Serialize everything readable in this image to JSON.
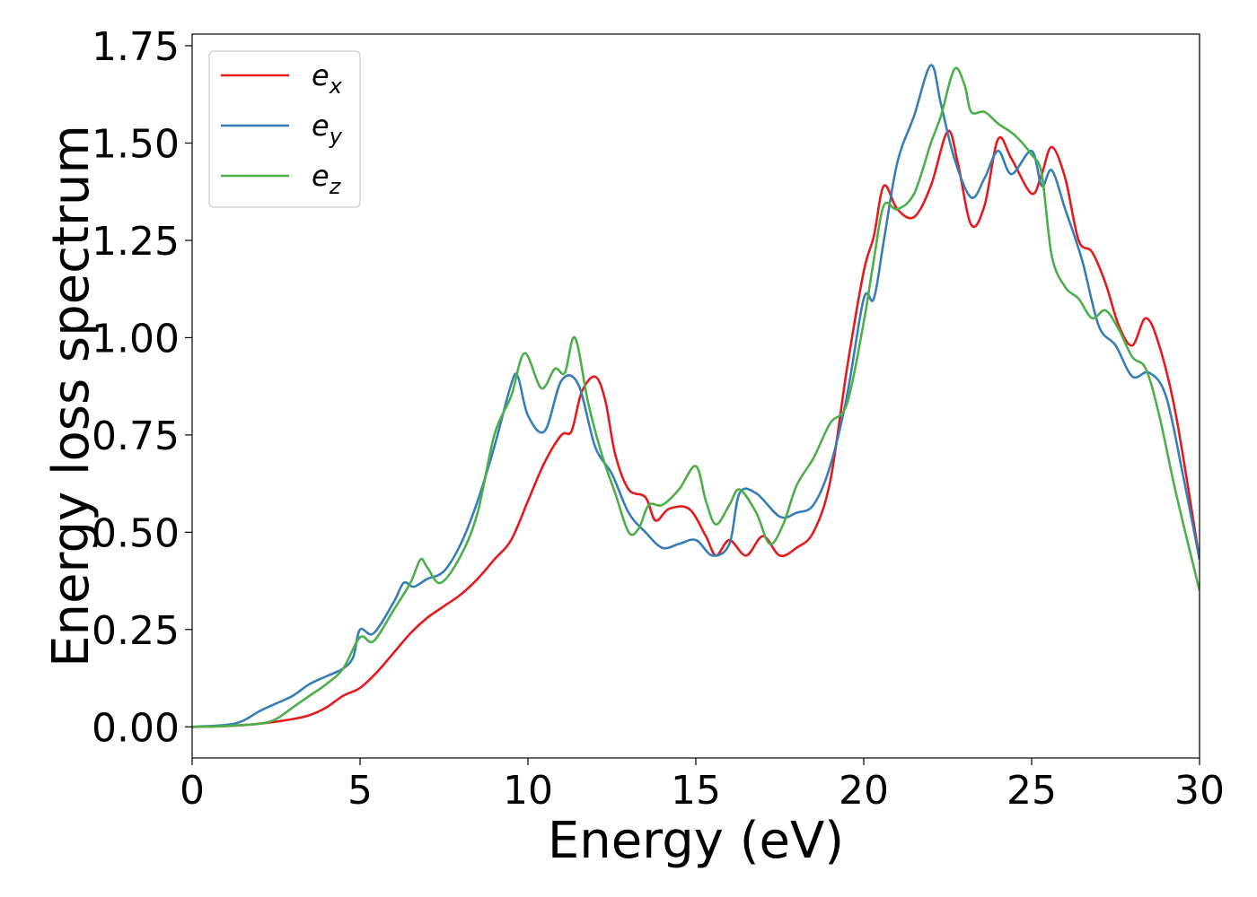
{
  "chart_data": {
    "type": "line",
    "title": "",
    "xlabel": "Energy (eV)",
    "ylabel": "Energy loss spectrum",
    "xlim": [
      0,
      30
    ],
    "ylim": [
      -0.08,
      1.78
    ],
    "xticks": [
      0,
      5,
      10,
      15,
      20,
      25,
      30
    ],
    "xtick_labels": [
      "0",
      "5",
      "10",
      "15",
      "20",
      "25",
      "30"
    ],
    "yticks": [
      0,
      0.25,
      0.5,
      0.75,
      1.0,
      1.25,
      1.5,
      1.75
    ],
    "ytick_labels": [
      "0.00",
      "0.25",
      "0.50",
      "0.75",
      "1.00",
      "1.25",
      "1.50",
      "1.75"
    ],
    "grid": false,
    "legend_position": "top-left",
    "series": [
      {
        "name": "e_x",
        "label_base": "e",
        "label_sub": "x",
        "color": "#e41a1c",
        "points": [
          [
            0,
            0
          ],
          [
            1,
            0.002
          ],
          [
            2,
            0.008
          ],
          [
            3,
            0.02
          ],
          [
            3.5,
            0.03
          ],
          [
            4,
            0.05
          ],
          [
            4.5,
            0.08
          ],
          [
            5,
            0.1
          ],
          [
            5.5,
            0.14
          ],
          [
            6,
            0.19
          ],
          [
            6.5,
            0.24
          ],
          [
            7,
            0.28
          ],
          [
            7.5,
            0.31
          ],
          [
            8,
            0.34
          ],
          [
            8.5,
            0.38
          ],
          [
            9,
            0.43
          ],
          [
            9.5,
            0.48
          ],
          [
            10,
            0.58
          ],
          [
            10.5,
            0.68
          ],
          [
            11,
            0.75
          ],
          [
            11.3,
            0.76
          ],
          [
            11.6,
            0.86
          ],
          [
            12,
            0.9
          ],
          [
            12.3,
            0.84
          ],
          [
            12.6,
            0.7
          ],
          [
            13,
            0.61
          ],
          [
            13.5,
            0.59
          ],
          [
            13.8,
            0.53
          ],
          [
            14.2,
            0.56
          ],
          [
            14.8,
            0.56
          ],
          [
            15.3,
            0.49
          ],
          [
            15.6,
            0.44
          ],
          [
            16,
            0.48
          ],
          [
            16.5,
            0.44
          ],
          [
            17,
            0.49
          ],
          [
            17.5,
            0.44
          ],
          [
            18,
            0.46
          ],
          [
            18.5,
            0.5
          ],
          [
            19,
            0.63
          ],
          [
            19.5,
            0.92
          ],
          [
            20,
            1.17
          ],
          [
            20.3,
            1.26
          ],
          [
            20.6,
            1.39
          ],
          [
            21,
            1.33
          ],
          [
            21.5,
            1.31
          ],
          [
            22,
            1.39
          ],
          [
            22.5,
            1.53
          ],
          [
            22.8,
            1.45
          ],
          [
            23.2,
            1.29
          ],
          [
            23.6,
            1.34
          ],
          [
            24,
            1.51
          ],
          [
            24.4,
            1.46
          ],
          [
            25,
            1.37
          ],
          [
            25.3,
            1.42
          ],
          [
            25.6,
            1.49
          ],
          [
            26,
            1.41
          ],
          [
            26.4,
            1.25
          ],
          [
            26.8,
            1.22
          ],
          [
            27.2,
            1.14
          ],
          [
            27.6,
            1.03
          ],
          [
            28,
            0.98
          ],
          [
            28.4,
            1.05
          ],
          [
            28.8,
            0.98
          ],
          [
            29.3,
            0.8
          ],
          [
            30,
            0.43
          ]
        ]
      },
      {
        "name": "e_y",
        "label_base": "e",
        "label_sub": "y",
        "color": "#377eb8",
        "points": [
          [
            0,
            0
          ],
          [
            1,
            0.005
          ],
          [
            1.5,
            0.015
          ],
          [
            2,
            0.04
          ],
          [
            2.5,
            0.06
          ],
          [
            3,
            0.08
          ],
          [
            3.5,
            0.11
          ],
          [
            4,
            0.13
          ],
          [
            4.5,
            0.15
          ],
          [
            4.8,
            0.18
          ],
          [
            5,
            0.25
          ],
          [
            5.4,
            0.24
          ],
          [
            6,
            0.32
          ],
          [
            6.3,
            0.37
          ],
          [
            6.6,
            0.36
          ],
          [
            7,
            0.38
          ],
          [
            7.5,
            0.4
          ],
          [
            8,
            0.47
          ],
          [
            8.5,
            0.58
          ],
          [
            9,
            0.72
          ],
          [
            9.5,
            0.88
          ],
          [
            9.7,
            0.9
          ],
          [
            10,
            0.8
          ],
          [
            10.5,
            0.76
          ],
          [
            11,
            0.89
          ],
          [
            11.5,
            0.88
          ],
          [
            12,
            0.72
          ],
          [
            12.5,
            0.65
          ],
          [
            13,
            0.55
          ],
          [
            13.5,
            0.5
          ],
          [
            14,
            0.46
          ],
          [
            14.5,
            0.47
          ],
          [
            15,
            0.48
          ],
          [
            15.5,
            0.44
          ],
          [
            16,
            0.47
          ],
          [
            16.3,
            0.6
          ],
          [
            16.8,
            0.6
          ],
          [
            17.5,
            0.54
          ],
          [
            18,
            0.55
          ],
          [
            18.5,
            0.57
          ],
          [
            19,
            0.67
          ],
          [
            19.5,
            0.85
          ],
          [
            20,
            1.1
          ],
          [
            20.3,
            1.1
          ],
          [
            20.6,
            1.25
          ],
          [
            21,
            1.45
          ],
          [
            21.5,
            1.57
          ],
          [
            22,
            1.7
          ],
          [
            22.3,
            1.6
          ],
          [
            22.7,
            1.46
          ],
          [
            23.2,
            1.36
          ],
          [
            23.6,
            1.41
          ],
          [
            24,
            1.48
          ],
          [
            24.4,
            1.42
          ],
          [
            25,
            1.48
          ],
          [
            25.3,
            1.39
          ],
          [
            25.6,
            1.43
          ],
          [
            26,
            1.33
          ],
          [
            26.5,
            1.2
          ],
          [
            27,
            1.03
          ],
          [
            27.5,
            0.98
          ],
          [
            28,
            0.9
          ],
          [
            28.5,
            0.91
          ],
          [
            29,
            0.85
          ],
          [
            29.5,
            0.65
          ],
          [
            30,
            0.43
          ]
        ]
      },
      {
        "name": "e_z",
        "label_base": "e",
        "label_sub": "z",
        "color": "#4daf4a",
        "points": [
          [
            0,
            0
          ],
          [
            1,
            0.002
          ],
          [
            2,
            0.008
          ],
          [
            2.5,
            0.02
          ],
          [
            3,
            0.05
          ],
          [
            3.5,
            0.08
          ],
          [
            4,
            0.11
          ],
          [
            4.5,
            0.15
          ],
          [
            5,
            0.23
          ],
          [
            5.4,
            0.22
          ],
          [
            6,
            0.3
          ],
          [
            6.5,
            0.37
          ],
          [
            6.8,
            0.43
          ],
          [
            7,
            0.41
          ],
          [
            7.4,
            0.37
          ],
          [
            8,
            0.44
          ],
          [
            8.5,
            0.55
          ],
          [
            9,
            0.75
          ],
          [
            9.5,
            0.85
          ],
          [
            9.9,
            0.96
          ],
          [
            10.4,
            0.87
          ],
          [
            10.8,
            0.92
          ],
          [
            11.1,
            0.91
          ],
          [
            11.4,
            1.0
          ],
          [
            11.8,
            0.83
          ],
          [
            12.2,
            0.7
          ],
          [
            12.6,
            0.6
          ],
          [
            13,
            0.5
          ],
          [
            13.3,
            0.51
          ],
          [
            13.6,
            0.57
          ],
          [
            14,
            0.57
          ],
          [
            14.5,
            0.61
          ],
          [
            15,
            0.67
          ],
          [
            15.3,
            0.58
          ],
          [
            15.6,
            0.52
          ],
          [
            16,
            0.57
          ],
          [
            16.3,
            0.61
          ],
          [
            16.8,
            0.55
          ],
          [
            17.2,
            0.47
          ],
          [
            17.6,
            0.52
          ],
          [
            18,
            0.62
          ],
          [
            18.5,
            0.69
          ],
          [
            19,
            0.78
          ],
          [
            19.5,
            0.83
          ],
          [
            20,
            1.04
          ],
          [
            20.3,
            1.2
          ],
          [
            20.6,
            1.34
          ],
          [
            21,
            1.33
          ],
          [
            21.5,
            1.37
          ],
          [
            22,
            1.5
          ],
          [
            22.3,
            1.57
          ],
          [
            22.7,
            1.69
          ],
          [
            23,
            1.65
          ],
          [
            23.2,
            1.58
          ],
          [
            23.6,
            1.58
          ],
          [
            24,
            1.55
          ],
          [
            24.5,
            1.52
          ],
          [
            25,
            1.47
          ],
          [
            25.3,
            1.42
          ],
          [
            25.6,
            1.21
          ],
          [
            26,
            1.13
          ],
          [
            26.4,
            1.1
          ],
          [
            26.8,
            1.05
          ],
          [
            27.2,
            1.07
          ],
          [
            27.6,
            1.02
          ],
          [
            28,
            0.95
          ],
          [
            28.4,
            0.92
          ],
          [
            28.8,
            0.8
          ],
          [
            29.3,
            0.6
          ],
          [
            30,
            0.35
          ]
        ]
      }
    ]
  }
}
